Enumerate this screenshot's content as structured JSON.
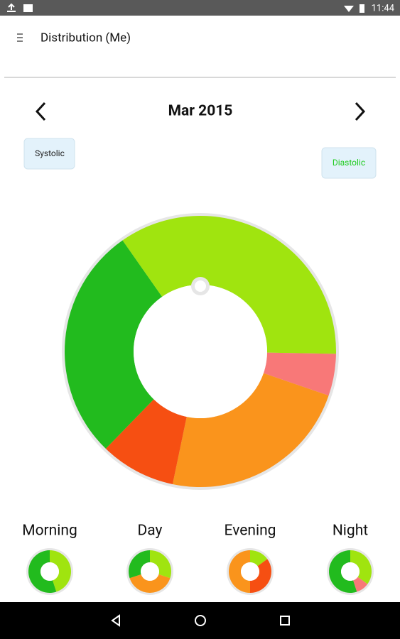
{
  "status_bar": {
    "time": "11:44"
  },
  "header": {
    "title": "Distribution (Me)"
  },
  "month": "Mar 2015",
  "toggles": [
    "Systolic",
    "Diastolic"
  ],
  "chart_data": [
    {
      "type": "donut",
      "values": [
        35,
        5,
        23,
        9,
        28
      ],
      "colors": [
        "#a0e40f",
        "#f87878",
        "#fa941c",
        "#f64f12",
        "#22bb1e"
      ]
    },
    {
      "type": "donut",
      "title": "Morning",
      "values": [
        45,
        55
      ],
      "colors": [
        "#a0e40f",
        "#22bb1e"
      ]
    },
    {
      "type": "donut",
      "title": "Day",
      "values": [
        30,
        40,
        30
      ],
      "colors": [
        "#a0e40f",
        "#fa941c",
        "#22bb1e"
      ]
    },
    {
      "type": "donut",
      "title": "Evening",
      "values": [
        15,
        35,
        50
      ],
      "colors": [
        "#a0e40f",
        "#f64f12",
        "#fa941c"
      ]
    },
    {
      "type": "donut",
      "title": "Night",
      "values": [
        35,
        10,
        55
      ],
      "colors": [
        "#a0e40f",
        "#f87878",
        "#22bb1e"
      ]
    }
  ]
}
